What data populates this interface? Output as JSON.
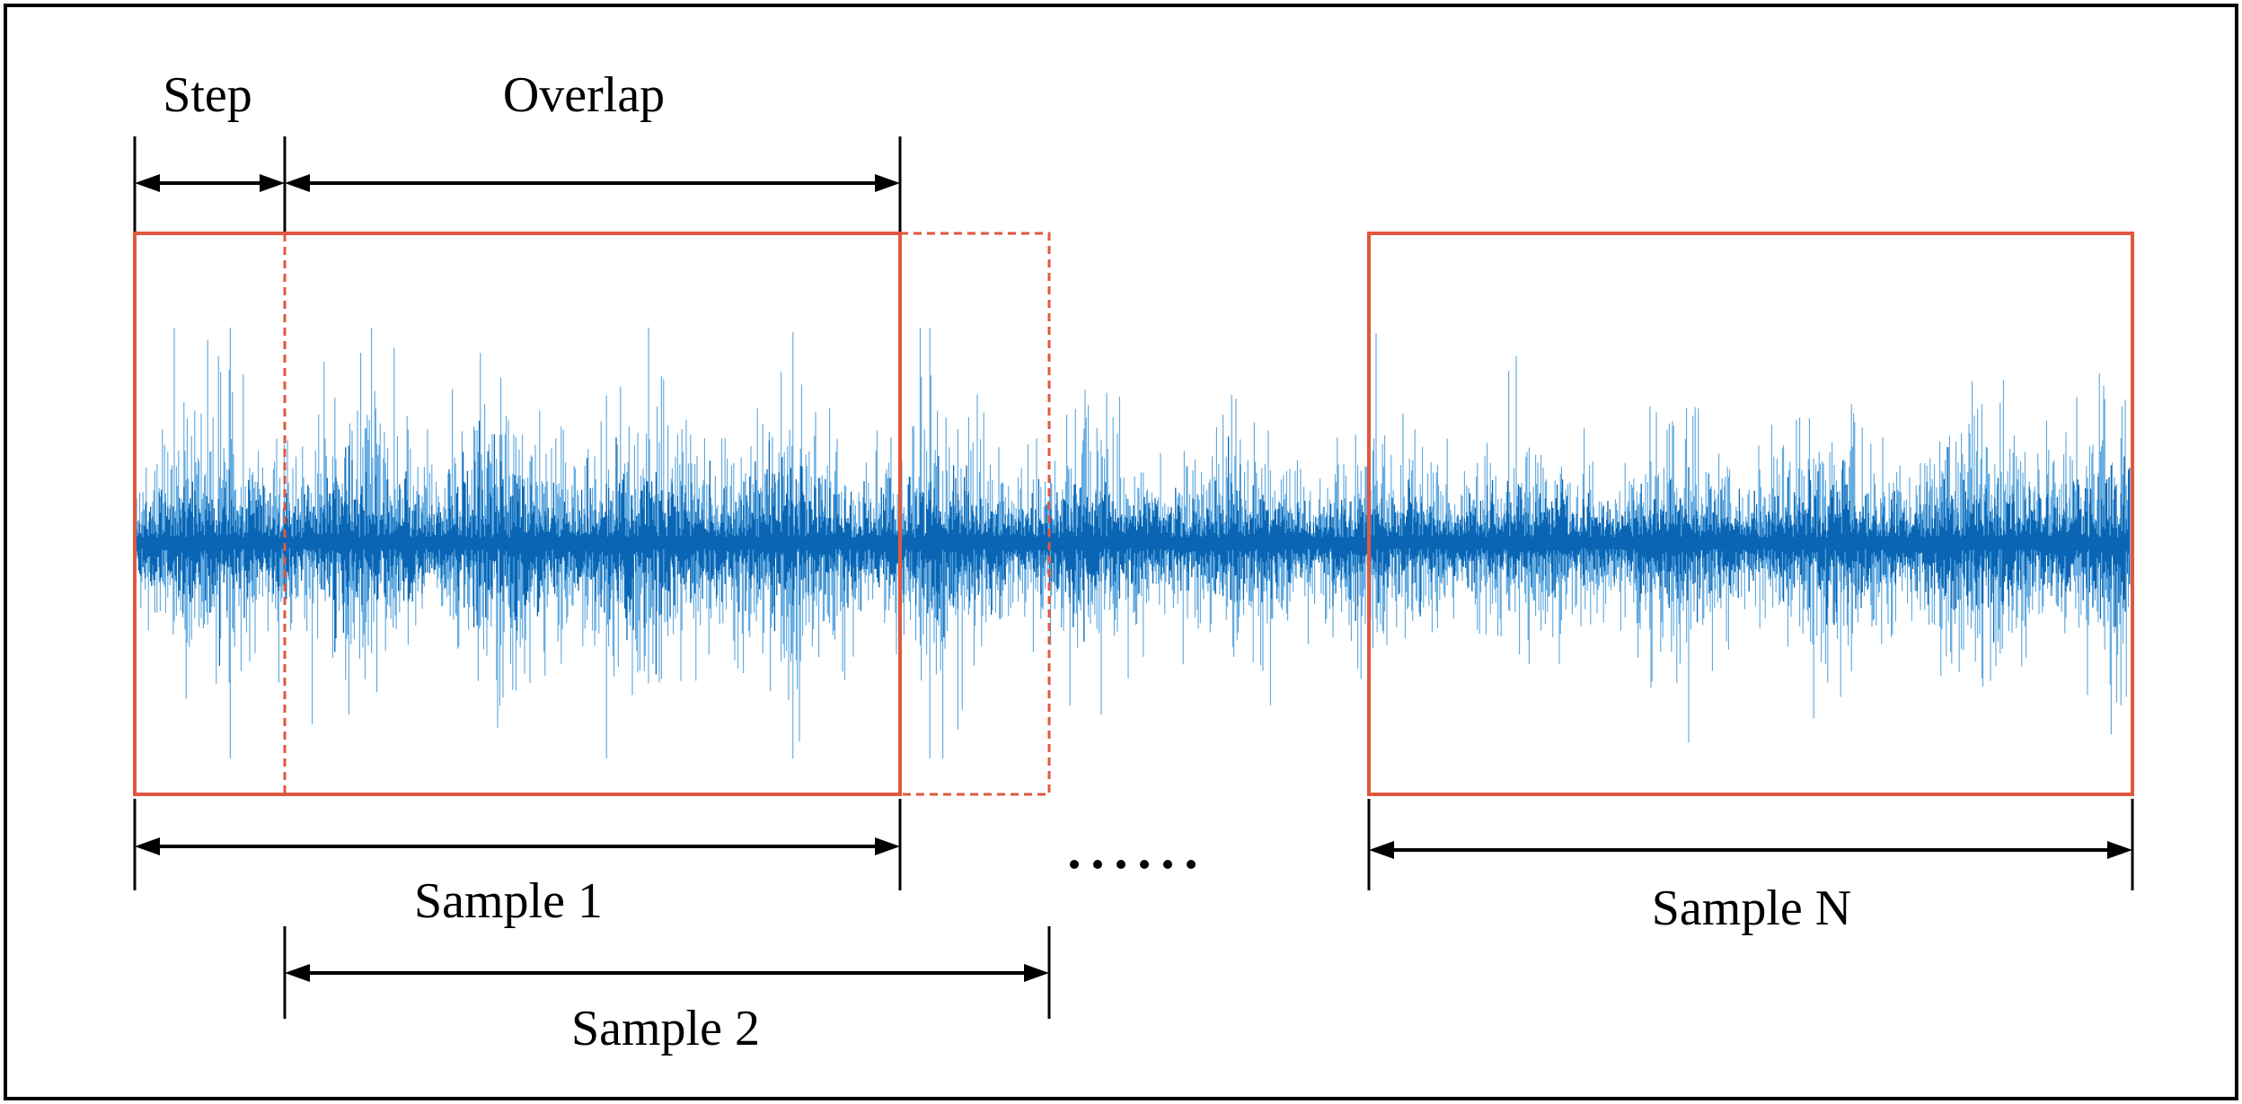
{
  "labels": {
    "step": "Step",
    "overlap": "Overlap",
    "sample1": "Sample 1",
    "sample2": "Sample 2",
    "sampleN": "Sample N",
    "ellipsis": "······"
  },
  "colors": {
    "window": "#e0583f",
    "signal_dark": "#0a66b4",
    "signal_light": "#5aa6df",
    "arrow": "#000000"
  },
  "windows": [
    {
      "name": "sample-1-window",
      "style": "solid"
    },
    {
      "name": "sample-2-window",
      "style": "dashed"
    },
    {
      "name": "sample-n-window",
      "style": "solid"
    }
  ],
  "signal": {
    "type": "vibration-waveform",
    "description_visible": false
  }
}
